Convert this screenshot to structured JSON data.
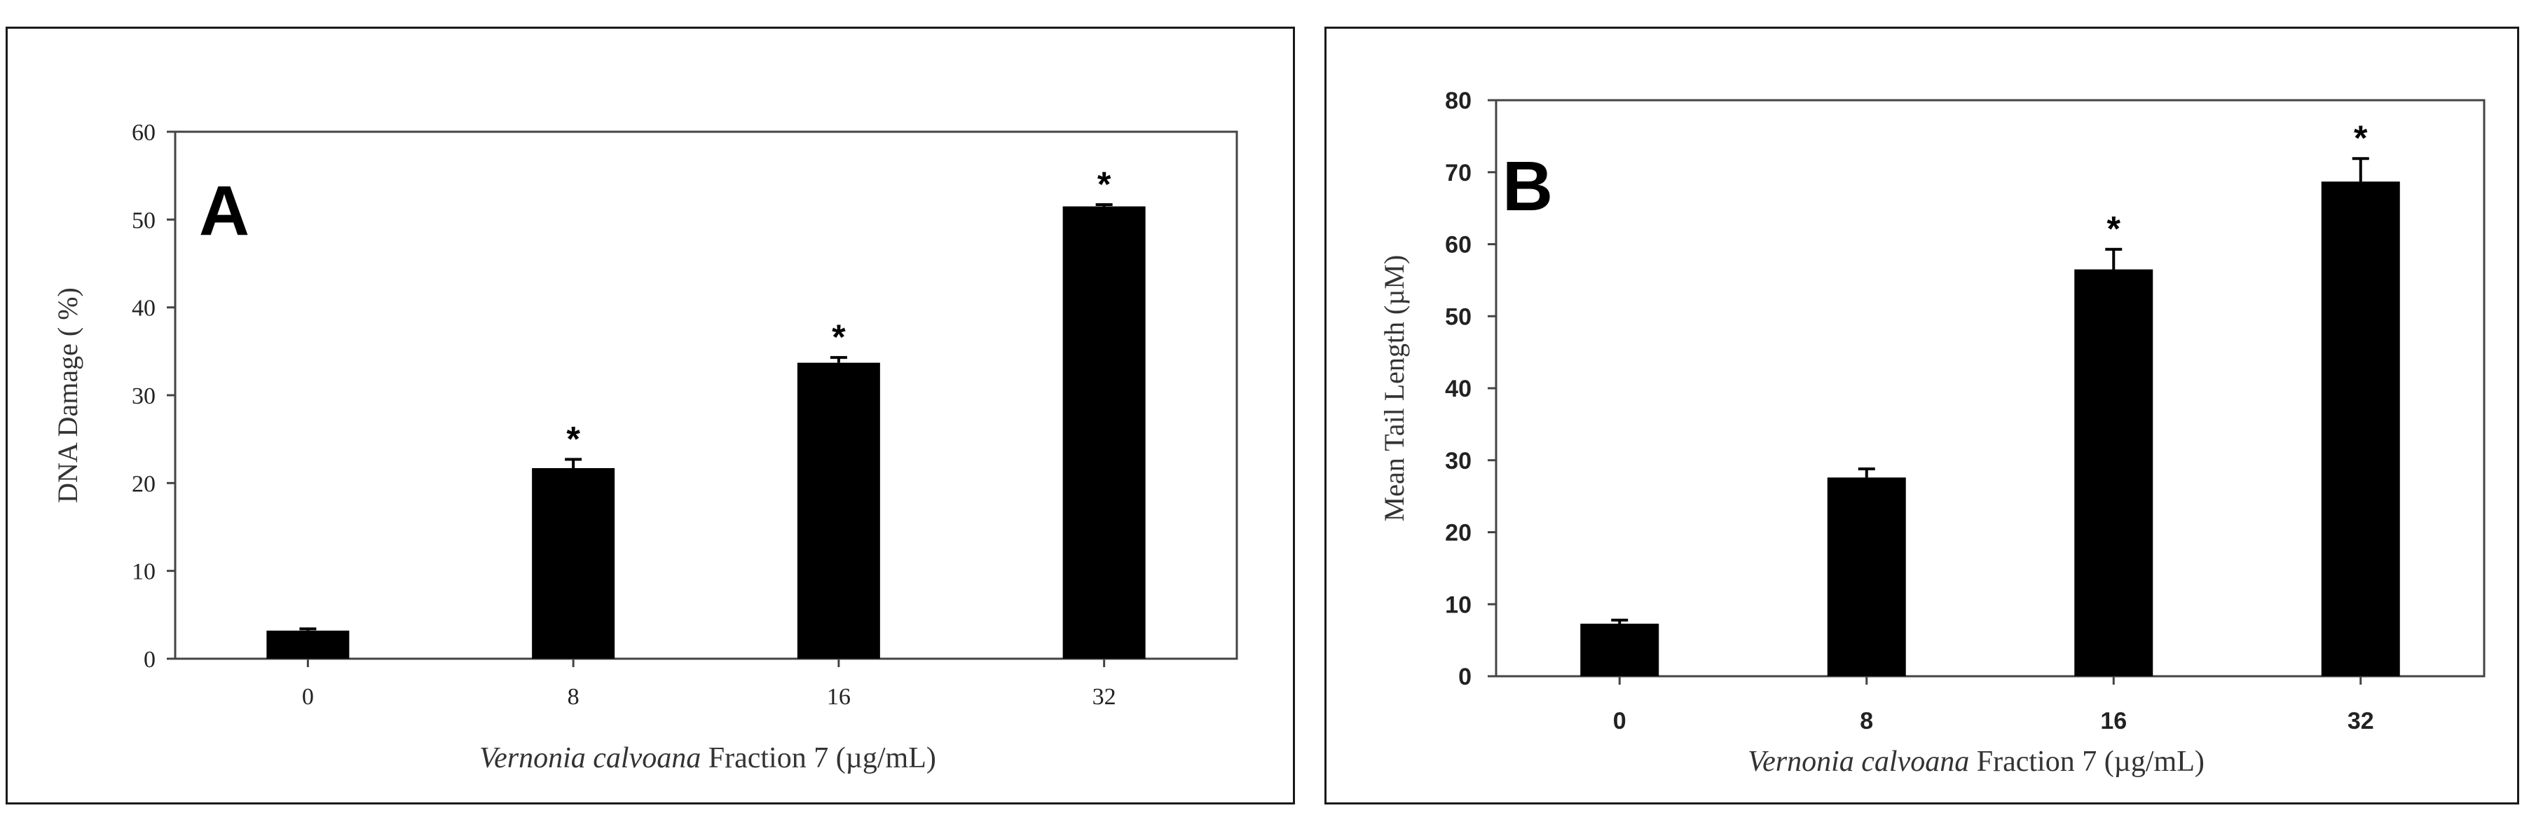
{
  "chart_data": [
    {
      "panel": "A",
      "type": "bar",
      "categories": [
        "0",
        "8",
        "16",
        "32"
      ],
      "values": [
        3.2,
        21.7,
        33.7,
        51.5
      ],
      "errors": [
        0.2,
        1.0,
        0.6,
        0.2
      ],
      "significance": [
        "",
        "*",
        "*",
        "*"
      ],
      "ylabel": "DNA Damage ( %)",
      "xlabel_italic": "Vernonia calvoana",
      "xlabel_rest": "Fraction 7 (µg/mL)",
      "ylim": [
        0,
        60
      ],
      "yticks": [
        "0",
        "10",
        "20",
        "30",
        "40",
        "50",
        "60"
      ],
      "bar_color": "#000000",
      "grid": false
    },
    {
      "panel": "B",
      "type": "bar",
      "categories": [
        "0",
        "8",
        "16",
        "32"
      ],
      "values": [
        7.3,
        27.6,
        56.5,
        68.7
      ],
      "errors": [
        0.5,
        1.2,
        2.8,
        3.2
      ],
      "significance": [
        "",
        "",
        "*",
        "*"
      ],
      "ylabel": "Mean Tail Length (µM)",
      "xlabel_italic": "Vernonia calvoana",
      "xlabel_rest": "Fraction 7 (µg/mL)",
      "ylim": [
        0,
        80
      ],
      "yticks": [
        "0",
        "10",
        "20",
        "30",
        "40",
        "50",
        "60",
        "70",
        "80"
      ],
      "bar_color": "#000000",
      "grid": false
    }
  ]
}
